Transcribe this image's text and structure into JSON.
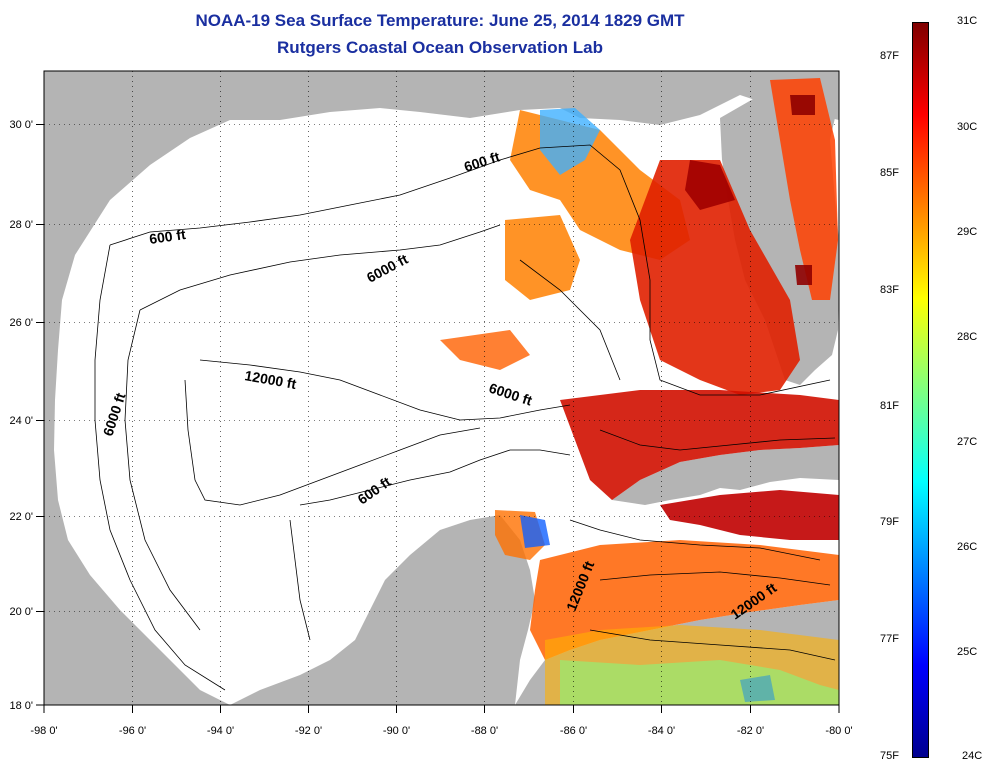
{
  "title": {
    "line1": "NOAA-19 Sea Surface Temperature:  June 25, 2014 1829 GMT",
    "line2": "Rutgers Coastal Ocean Observation Lab"
  },
  "colors": {
    "land": "#b4b4b4",
    "ocean_no_data": "#ffffff",
    "title": "#1a2fa0"
  },
  "map": {
    "x_ticks": [
      "-98 0'",
      "-96 0'",
      "-94 0'",
      "-92 0'",
      "-90 0'",
      "-88 0'",
      "-86 0'",
      "-84 0'",
      "-82 0'",
      "-80 0'"
    ],
    "y_ticks": [
      "30 0'",
      "28 0'",
      "26 0'",
      "24 0'",
      "22 0'",
      "20 0'",
      "18 0'"
    ],
    "contour_labels": [
      {
        "id": "c600-nw",
        "text": "600 ft"
      },
      {
        "id": "c600-ne",
        "text": "600 ft"
      },
      {
        "id": "c600-s",
        "text": "600 ft"
      },
      {
        "id": "c6000-w",
        "text": "6000 ft"
      },
      {
        "id": "c6000-n",
        "text": "6000 ft"
      },
      {
        "id": "c6000-e",
        "text": "6000 ft"
      },
      {
        "id": "c12000-c",
        "text": "12000 ft"
      },
      {
        "id": "c12000-yuc",
        "text": "12000 ft"
      },
      {
        "id": "c12000-se",
        "text": "12000 ft"
      }
    ]
  },
  "colorbar": {
    "celsius": [
      "31C",
      "30C",
      "29C",
      "28C",
      "27C",
      "26C",
      "25C",
      "24C"
    ],
    "fahrenheit": [
      "87F",
      "85F",
      "83F",
      "81F",
      "79F",
      "77F",
      "75F"
    ],
    "gradient_stops": [
      "#7f0000",
      "#ff0000",
      "#ff8000",
      "#ffff00",
      "#80ff80",
      "#00ffff",
      "#0080ff",
      "#0000ff",
      "#00008f"
    ]
  }
}
